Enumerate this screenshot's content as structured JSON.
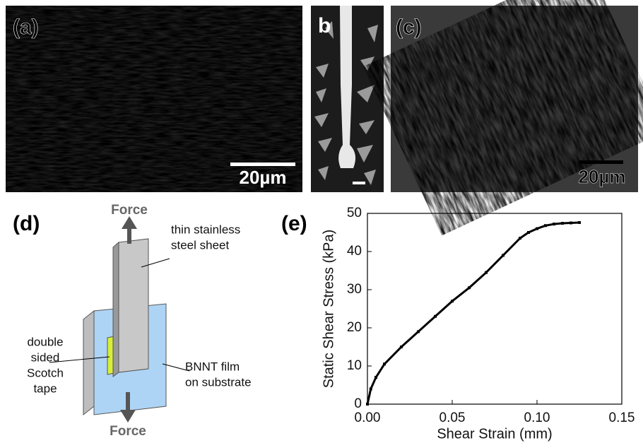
{
  "panels": {
    "a": {
      "label": "(a)",
      "scale_bar": "20µm"
    },
    "b": {
      "label": "b"
    },
    "c": {
      "label": "(c)",
      "scale_bar": "20µm"
    },
    "d": {
      "label": "(d)",
      "force_top": "Force",
      "force_bottom": "Force",
      "sheet_label": [
        "thin stainless",
        "steel sheet"
      ],
      "tape_label": [
        "double",
        "sided",
        "Scotch",
        "tape"
      ],
      "film_label": [
        "BNNT film",
        "on substrate"
      ]
    },
    "e": {
      "label": "(e)"
    }
  },
  "chart_data": {
    "type": "line",
    "x_label": "Shear Strain (mm)",
    "y_label": "Static Shear Stress (kPa)",
    "x": [
      0,
      0.002,
      0.005,
      0.01,
      0.02,
      0.03,
      0.04,
      0.05,
      0.06,
      0.07,
      0.08,
      0.09,
      0.095,
      0.1,
      0.105,
      0.11,
      0.115,
      0.12,
      0.125
    ],
    "series": [
      {
        "name": "BNNT film",
        "color": "#000000",
        "values": [
          0,
          4,
          7,
          10.5,
          15,
          19,
          23,
          27,
          30.5,
          34.5,
          39,
          43.5,
          45,
          46,
          46.8,
          47.2,
          47.4,
          47.5,
          47.6
        ]
      }
    ],
    "xlim": [
      0,
      0.15
    ],
    "ylim": [
      0,
      50
    ],
    "xticks": [
      {
        "value": 0,
        "label": "0.00"
      },
      0.05,
      {
        "value": 0.1,
        "label": "0.10"
      },
      0.15
    ],
    "yticks": [
      0,
      10,
      20,
      30,
      40,
      50
    ]
  }
}
